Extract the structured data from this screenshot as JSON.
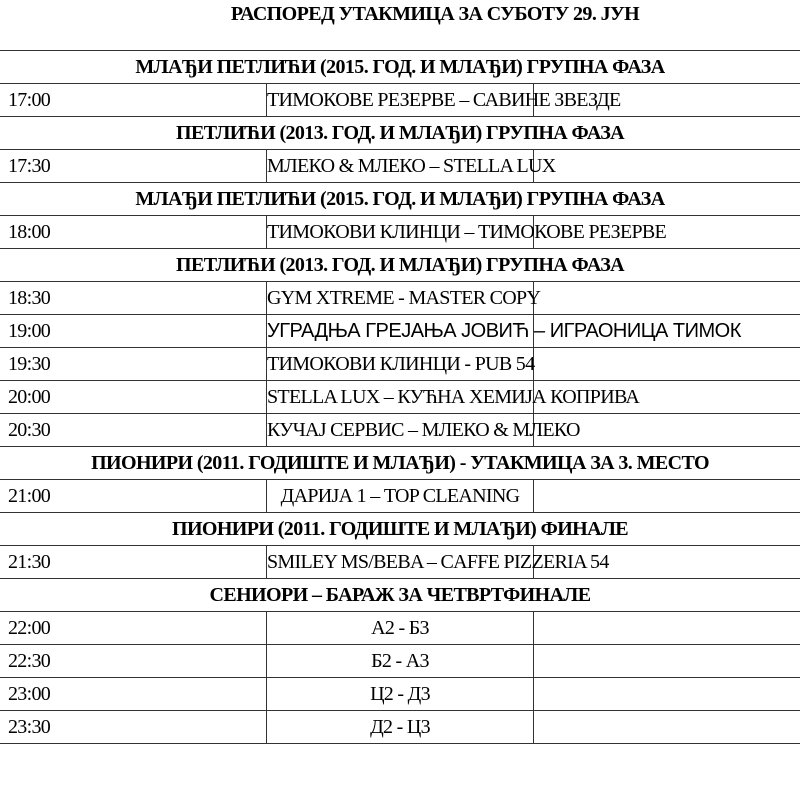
{
  "title": "РАСПОРЕД УТАКМИЦА ЗА СУБОТУ 29. ЈУН",
  "rows": [
    {
      "type": "header",
      "text": "МЛАЂИ ПЕТЛИЋИ (2015. ГОД. И МЛАЂИ) ГРУПНА ФАЗА"
    },
    {
      "type": "match",
      "time": "17:00",
      "match": "ТИМОКОВЕ РЕЗЕРВЕ – САВИНЕ ЗВЕЗДЕ"
    },
    {
      "type": "header",
      "text": "ПЕТЛИЋИ (2013. ГОД. И МЛАЂИ) ГРУПНА ФАЗА"
    },
    {
      "type": "match",
      "time": "17:30",
      "match": "МЛЕКО & МЛЕКО – STELLA LUX"
    },
    {
      "type": "header",
      "text": "МЛАЂИ ПЕТЛИЋИ (2015. ГОД. И МЛАЂИ) ГРУПНА ФАЗА"
    },
    {
      "type": "match",
      "time": "18:00",
      "match": "ТИМОКОВИ КЛИНЦИ – ТИМОКОВЕ РЕЗЕРВЕ"
    },
    {
      "type": "header",
      "text": "ПЕТЛИЋИ (2013. ГОД. И МЛАЂИ) ГРУПНА ФАЗА"
    },
    {
      "type": "match",
      "time": "18:30",
      "match": "GYM XTREME - MASTER COPY"
    },
    {
      "type": "match",
      "time": "19:00",
      "match": "УГРАДЊА ГРЕЈАЊА ЈОВИЋ – ИГРАОНИЦА ТИМОК",
      "sans": true
    },
    {
      "type": "match",
      "time": "19:30",
      "match": "ТИМОКОВИ КЛИНЦИ - PUB 54"
    },
    {
      "type": "match",
      "time": "20:00",
      "match": "STELLA LUX – КУЋНА ХЕМИЈА КОПРИВА"
    },
    {
      "type": "match",
      "time": "20:30",
      "match": "КУЧАЈ СЕРВИС – МЛЕКО & МЛЕКО"
    },
    {
      "type": "header",
      "text": "ПИОНИРИ (2011. ГОДИШТЕ И МЛАЂИ) -  УТАКМИЦА ЗА 3. МЕСТО"
    },
    {
      "type": "match",
      "time": "21:00",
      "match": "ДАРИЈА 1 – TOP CLEANING"
    },
    {
      "type": "header",
      "text": "ПИОНИРИ (2011. ГОДИШТЕ И МЛАЂИ) ФИНАЛЕ"
    },
    {
      "type": "match",
      "time": "21:30",
      "match": "SMILEY MS/BEBA – CAFFE PIZZERIA 54"
    },
    {
      "type": "header",
      "text": "СЕНИОРИ – БАРАЖ ЗА ЧЕТВРТФИНАЛЕ"
    },
    {
      "type": "match",
      "time": "22:00",
      "match": "А2 - Б3"
    },
    {
      "type": "match",
      "time": "22:30",
      "match": "Б2 - А3"
    },
    {
      "type": "match",
      "time": "23:00",
      "match": "Ц2 - Д3"
    },
    {
      "type": "match",
      "time": "23:30",
      "match": "Д2 - Ц3"
    }
  ]
}
